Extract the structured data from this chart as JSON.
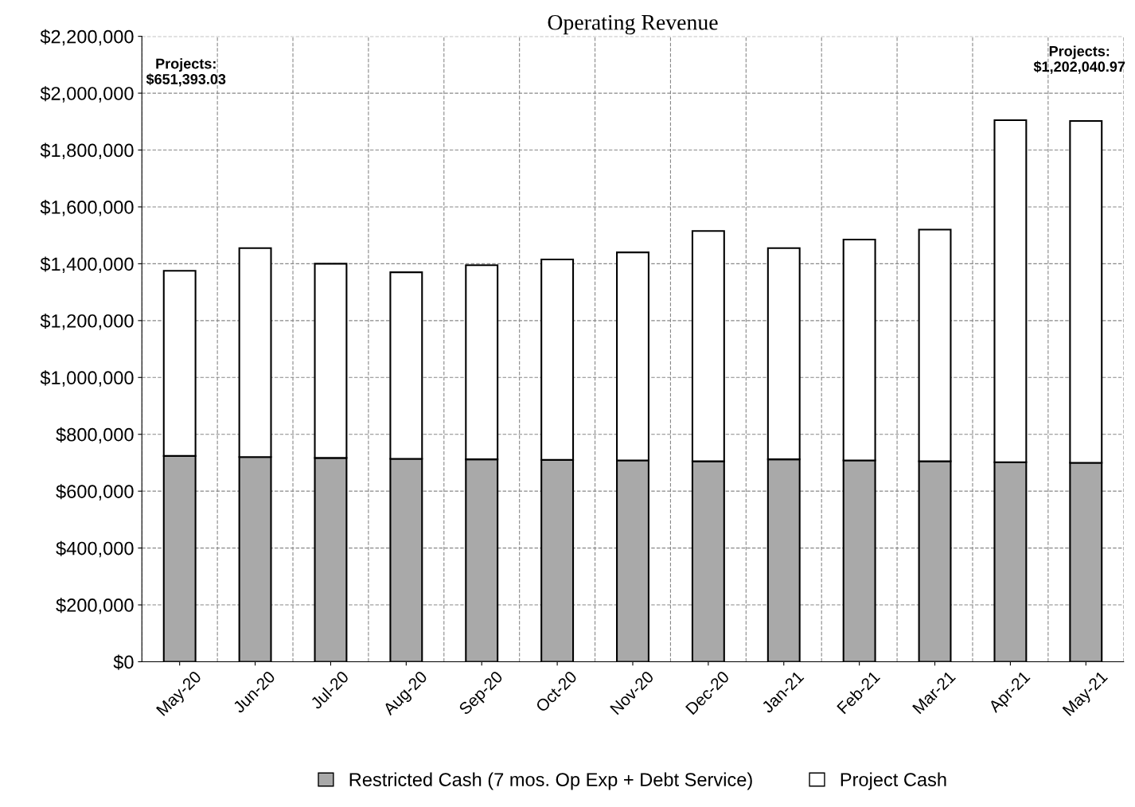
{
  "chart_data": {
    "type": "bar",
    "title": "Operating Revenue",
    "stacked": true,
    "categories": [
      "May-20",
      "Jun-20",
      "Jul-20",
      "Aug-20",
      "Sep-20",
      "Oct-20",
      "Nov-20",
      "Dec-20",
      "Jan-21",
      "Feb-21",
      "Mar-21",
      "Apr-21",
      "May-21"
    ],
    "series": [
      {
        "name": "Restricted Cash (7 mos. Op Exp + Debt Service)",
        "color": "#a9a9a9",
        "values": [
          724000,
          720000,
          717000,
          714000,
          712000,
          710000,
          708000,
          705000,
          712000,
          708000,
          705000,
          702000,
          700000
        ]
      },
      {
        "name": "Project Cash",
        "color": "#ffffff",
        "values": [
          651393.03,
          735000,
          683000,
          656000,
          683000,
          705000,
          732000,
          810000,
          743000,
          777000,
          815000,
          1203000,
          1202040.97
        ]
      }
    ],
    "ylim": [
      0,
      2200000
    ],
    "yticks": [
      {
        "value": 0,
        "label": "$0"
      },
      {
        "value": 200000,
        "label": "$200,000"
      },
      {
        "value": 400000,
        "label": "$400,000"
      },
      {
        "value": 600000,
        "label": "$600,000"
      },
      {
        "value": 800000,
        "label": "$800,000"
      },
      {
        "value": 1000000,
        "label": "$1,000,000"
      },
      {
        "value": 1200000,
        "label": "$1,200,000"
      },
      {
        "value": 1400000,
        "label": "$1,400,000"
      },
      {
        "value": 1600000,
        "label": "$1,600,000"
      },
      {
        "value": 1800000,
        "label": "$1,800,000"
      },
      {
        "value": 2000000,
        "label": "$2,000,000"
      },
      {
        "value": 2200000,
        "label": "$2,200,000"
      }
    ],
    "annotations": [
      "Projects:\n$651,393.03",
      "Projects:\n$1,202,040.97"
    ],
    "grid": true,
    "legend": "bottom"
  }
}
